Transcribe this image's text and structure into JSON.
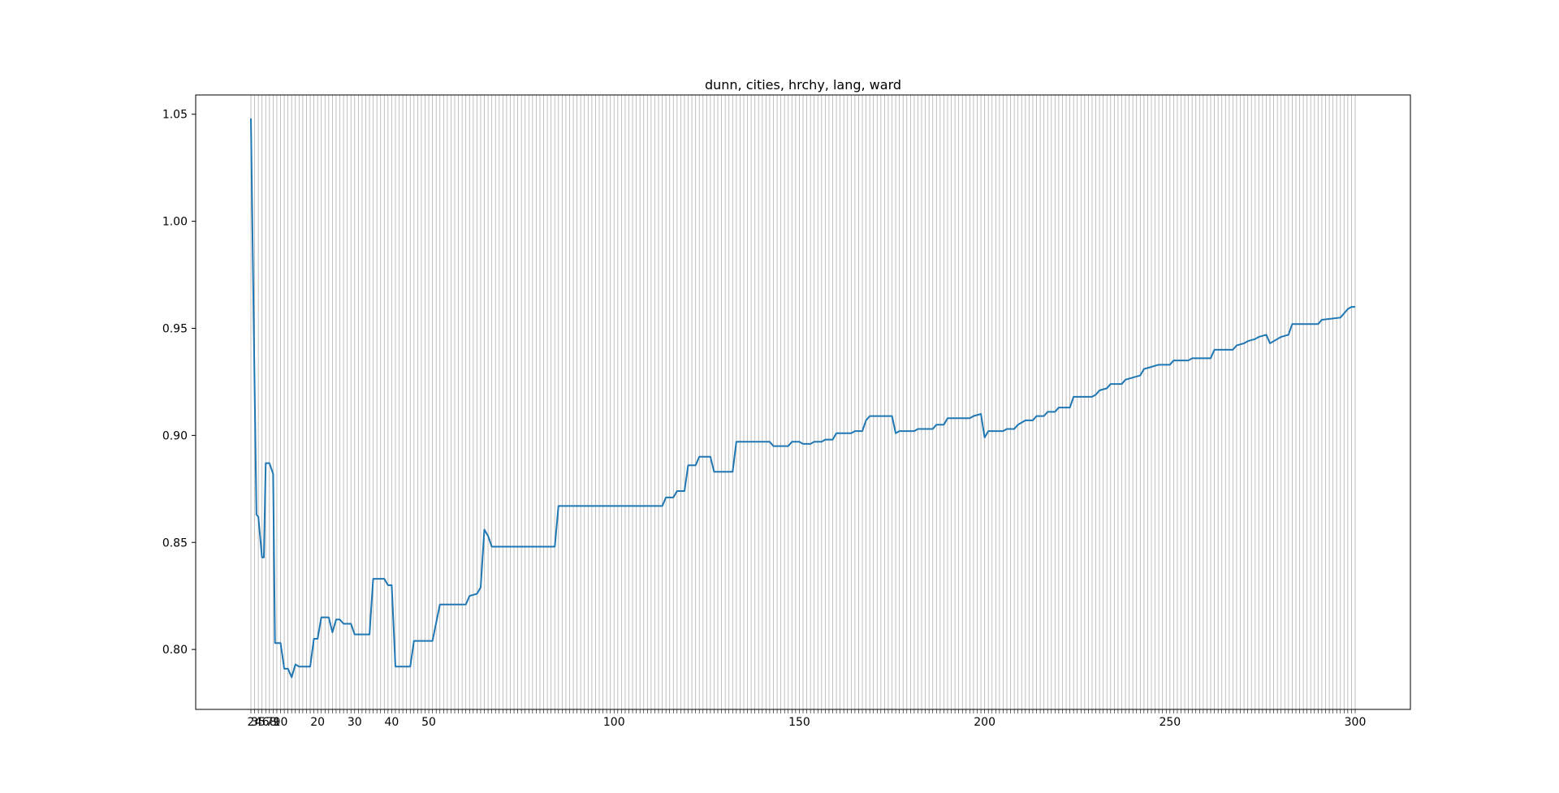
{
  "chart_data": {
    "type": "line",
    "title": "dunn, cities, hrchy, lang, ward",
    "xlabel": "",
    "ylabel": "",
    "x_range": [
      2,
      300
    ],
    "x_tick_labels": [
      "2",
      "3",
      "4",
      "5",
      "6",
      "7",
      "8",
      "9",
      "10",
      "20",
      "30",
      "40",
      "50",
      "100",
      "150",
      "200",
      "250",
      "300"
    ],
    "ylim": [
      0.772,
      1.059
    ],
    "y_ticks": [
      0.8,
      0.85,
      0.9,
      0.95,
      1.0,
      1.05
    ],
    "y_tick_labels": [
      "0.80",
      "0.85",
      "0.90",
      "0.95",
      "1.00",
      "1.05"
    ],
    "grid": "vertical",
    "series": [
      {
        "color": "#1f77b4",
        "points": [
          [
            2,
            1.048
          ],
          [
            3,
            0.923
          ],
          [
            3.5,
            0.863
          ],
          [
            4,
            0.862
          ],
          [
            5,
            0.843
          ],
          [
            5.5,
            0.843
          ],
          [
            6,
            0.887
          ],
          [
            7,
            0.887
          ],
          [
            8,
            0.882
          ],
          [
            8.5,
            0.803
          ],
          [
            10,
            0.803
          ],
          [
            11,
            0.791
          ],
          [
            12,
            0.791
          ],
          [
            13,
            0.787
          ],
          [
            14,
            0.793
          ],
          [
            15,
            0.792
          ],
          [
            18,
            0.792
          ],
          [
            19,
            0.805
          ],
          [
            20,
            0.805
          ],
          [
            21,
            0.815
          ],
          [
            23,
            0.815
          ],
          [
            24,
            0.808
          ],
          [
            25,
            0.814
          ],
          [
            26,
            0.814
          ],
          [
            27,
            0.812
          ],
          [
            29,
            0.812
          ],
          [
            30,
            0.807
          ],
          [
            34,
            0.807
          ],
          [
            35,
            0.833
          ],
          [
            38,
            0.833
          ],
          [
            39,
            0.83
          ],
          [
            40,
            0.83
          ],
          [
            41,
            0.792
          ],
          [
            45,
            0.792
          ],
          [
            46,
            0.804
          ],
          [
            51,
            0.804
          ],
          [
            53,
            0.821
          ],
          [
            60,
            0.821
          ],
          [
            61,
            0.825
          ],
          [
            63,
            0.826
          ],
          [
            64,
            0.829
          ],
          [
            65,
            0.856
          ],
          [
            66,
            0.853
          ],
          [
            67,
            0.848
          ],
          [
            84,
            0.848
          ],
          [
            85,
            0.867
          ],
          [
            113,
            0.867
          ],
          [
            114,
            0.871
          ],
          [
            116,
            0.871
          ],
          [
            117,
            0.874
          ],
          [
            119,
            0.874
          ],
          [
            120,
            0.886
          ],
          [
            122,
            0.886
          ],
          [
            123,
            0.89
          ],
          [
            126,
            0.89
          ],
          [
            127,
            0.883
          ],
          [
            132,
            0.883
          ],
          [
            133,
            0.897
          ],
          [
            142,
            0.897
          ],
          [
            143,
            0.895
          ],
          [
            147,
            0.895
          ],
          [
            148,
            0.897
          ],
          [
            150,
            0.897
          ],
          [
            151,
            0.896
          ],
          [
            153,
            0.896
          ],
          [
            154,
            0.897
          ],
          [
            156,
            0.897
          ],
          [
            157,
            0.898
          ],
          [
            159,
            0.898
          ],
          [
            160,
            0.901
          ],
          [
            164,
            0.901
          ],
          [
            165,
            0.902
          ],
          [
            167,
            0.902
          ],
          [
            168,
            0.907
          ],
          [
            169,
            0.909
          ],
          [
            175,
            0.909
          ],
          [
            176,
            0.901
          ],
          [
            177,
            0.902
          ],
          [
            181,
            0.902
          ],
          [
            182,
            0.903
          ],
          [
            186,
            0.903
          ],
          [
            187,
            0.905
          ],
          [
            189,
            0.905
          ],
          [
            190,
            0.908
          ],
          [
            196,
            0.908
          ],
          [
            197,
            0.909
          ],
          [
            199,
            0.91
          ],
          [
            200,
            0.899
          ],
          [
            201,
            0.902
          ],
          [
            205,
            0.902
          ],
          [
            206,
            0.903
          ],
          [
            208,
            0.903
          ],
          [
            209,
            0.905
          ],
          [
            211,
            0.907
          ],
          [
            213,
            0.907
          ],
          [
            214,
            0.909
          ],
          [
            216,
            0.909
          ],
          [
            217,
            0.911
          ],
          [
            219,
            0.911
          ],
          [
            220,
            0.913
          ],
          [
            223,
            0.913
          ],
          [
            224,
            0.918
          ],
          [
            229,
            0.918
          ],
          [
            230,
            0.919
          ],
          [
            231,
            0.921
          ],
          [
            233,
            0.922
          ],
          [
            234,
            0.924
          ],
          [
            237,
            0.924
          ],
          [
            238,
            0.926
          ],
          [
            240,
            0.927
          ],
          [
            242,
            0.928
          ],
          [
            243,
            0.931
          ],
          [
            245,
            0.932
          ],
          [
            247,
            0.933
          ],
          [
            250,
            0.933
          ],
          [
            251,
            0.935
          ],
          [
            255,
            0.935
          ],
          [
            256,
            0.936
          ],
          [
            261,
            0.936
          ],
          [
            262,
            0.94
          ],
          [
            267,
            0.94
          ],
          [
            268,
            0.942
          ],
          [
            270,
            0.943
          ],
          [
            271,
            0.944
          ],
          [
            273,
            0.945
          ],
          [
            274,
            0.946
          ],
          [
            276,
            0.947
          ],
          [
            277,
            0.943
          ],
          [
            279,
            0.945
          ],
          [
            280,
            0.946
          ],
          [
            282,
            0.947
          ],
          [
            283,
            0.952
          ],
          [
            290,
            0.952
          ],
          [
            291,
            0.954
          ],
          [
            296,
            0.955
          ],
          [
            297,
            0.957
          ],
          [
            298,
            0.959
          ],
          [
            299,
            0.96
          ],
          [
            300,
            0.96
          ]
        ]
      }
    ]
  }
}
